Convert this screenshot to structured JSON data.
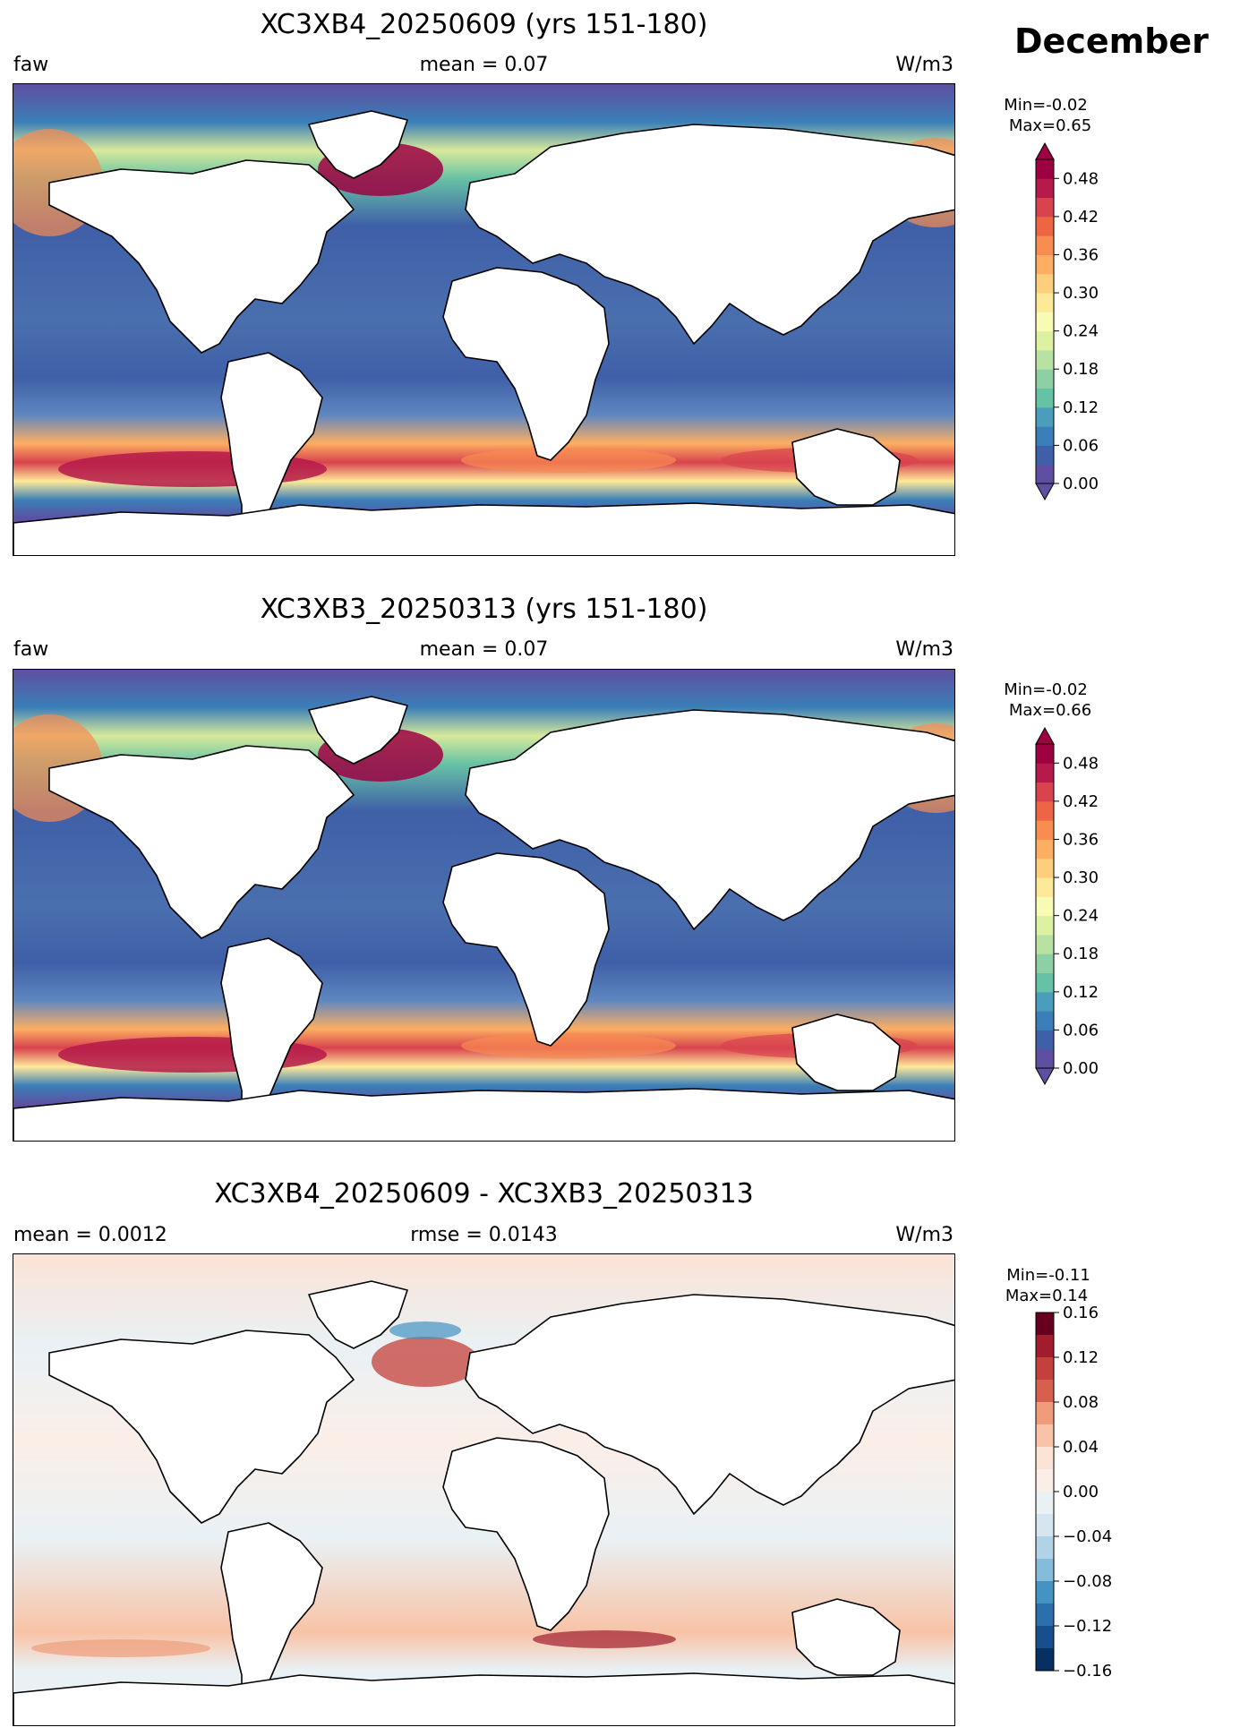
{
  "month": "December",
  "panels": [
    {
      "title": "XC3XB4_20250609 (yrs 151-180)",
      "left": "faw",
      "center": "mean = 0.07",
      "right": "W/m3",
      "minmax": [
        "Min=-0.02",
        "Max=0.65"
      ],
      "colorbar": {
        "colormap": "Spectral_r",
        "ticks": [
          "0.00",
          "0.06",
          "0.12",
          "0.18",
          "0.24",
          "0.30",
          "0.36",
          "0.42",
          "0.48"
        ],
        "extend": "both",
        "range": [
          0.0,
          0.51
        ]
      }
    },
    {
      "title": "XC3XB3_20250313 (yrs 151-180)",
      "left": "faw",
      "center": "mean = 0.07",
      "right": "W/m3",
      "minmax": [
        "Min=-0.02",
        "Max=0.66"
      ],
      "colorbar": {
        "colormap": "Spectral_r",
        "ticks": [
          "0.00",
          "0.06",
          "0.12",
          "0.18",
          "0.24",
          "0.30",
          "0.36",
          "0.42",
          "0.48"
        ],
        "extend": "both",
        "range": [
          0.0,
          0.51
        ]
      }
    },
    {
      "title": "XC3XB4_20250609 - XC3XB3_20250313",
      "left": "mean = 0.0012",
      "center": "rmse = 0.0143",
      "right": "W/m3",
      "minmax": [
        "Min=-0.11",
        "Max=0.14"
      ],
      "colorbar": {
        "colormap": "RdBu_r",
        "ticks": [
          "0.16",
          "0.12",
          "0.08",
          "0.04",
          "0.00",
          "−0.04",
          "−0.08",
          "−0.12",
          "−0.16"
        ],
        "extend": "neither",
        "range": [
          -0.16,
          0.16
        ]
      }
    }
  ]
}
